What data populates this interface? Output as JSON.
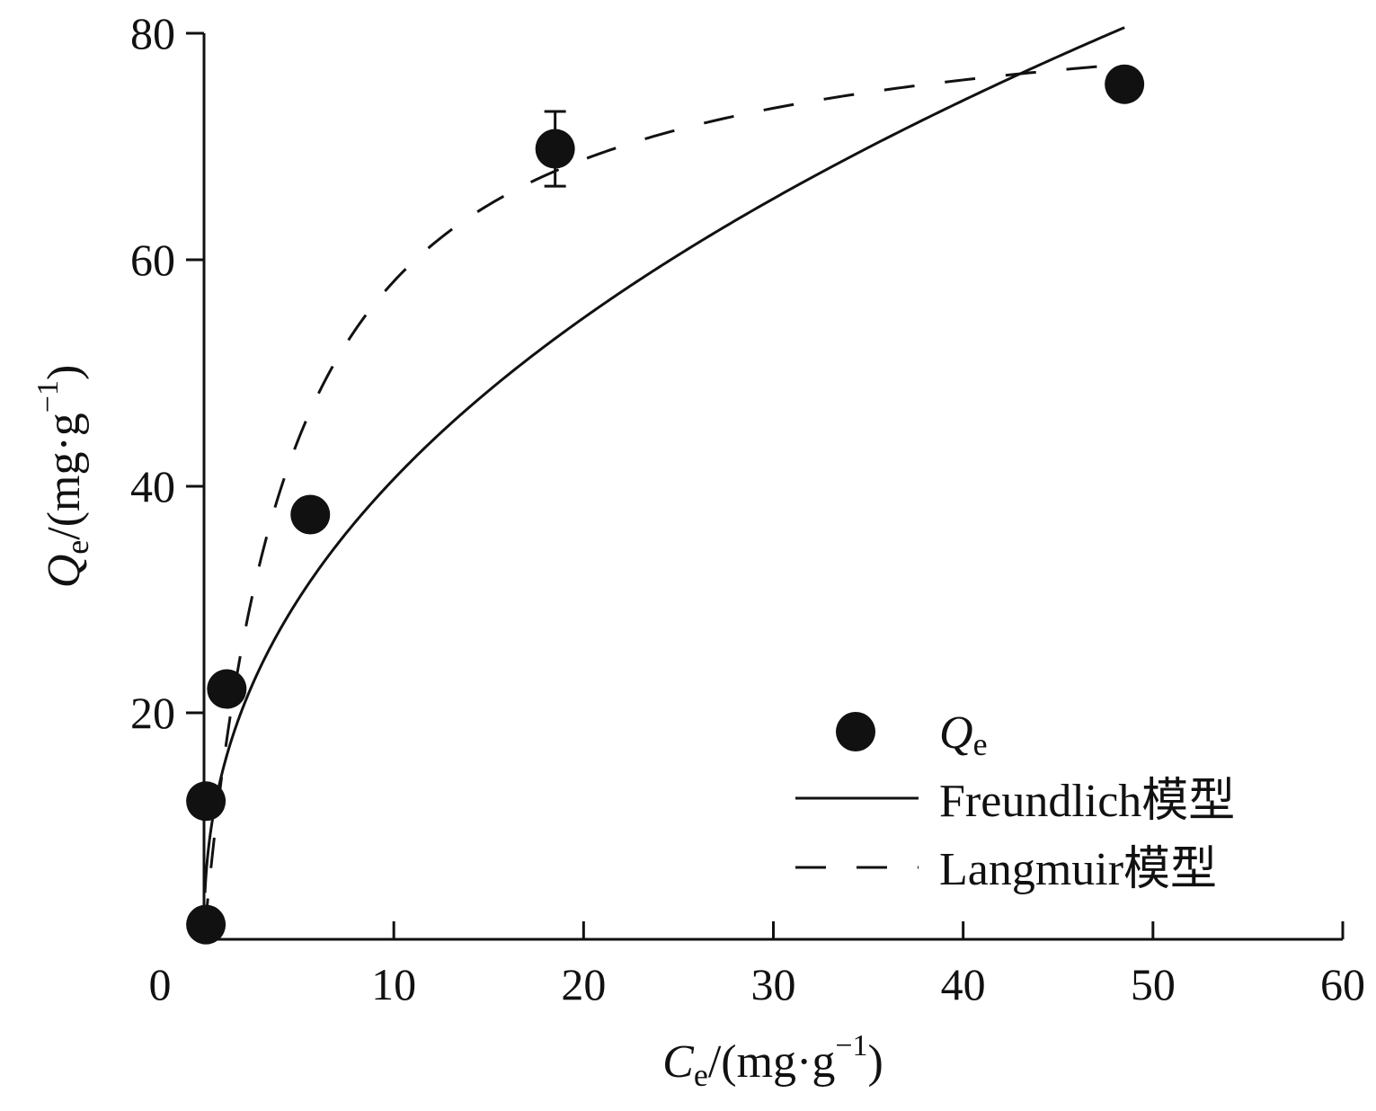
{
  "chart_data": {
    "type": "scatter",
    "xlim": [
      0,
      60
    ],
    "ylim": [
      0,
      80
    ],
    "x_ticks": [
      0,
      10,
      20,
      30,
      40,
      50,
      60
    ],
    "y_ticks": [
      20,
      40,
      60,
      80
    ],
    "x_tick_labels": [
      "0",
      "10",
      "20",
      "30",
      "40",
      "50",
      "60"
    ],
    "y_tick_labels": [
      "20",
      "40",
      "60",
      "80"
    ],
    "xlabel": {
      "symbol": "C",
      "sub": "e",
      "unit": "/(mg·g",
      "sup": "−1",
      "close": ")"
    },
    "ylabel": {
      "symbol": "Q",
      "sub": "e",
      "unit": "/(mg·g",
      "sup": "−1",
      "close": ")"
    },
    "legend_position": "bottom-right",
    "grid": false,
    "series": [
      {
        "name": "Q",
        "name_sub": "e",
        "kind": "points",
        "x": [
          0.1,
          0.1,
          1.2,
          5.6,
          18.5,
          48.5
        ],
        "y": [
          1.3,
          12.2,
          22.1,
          37.5,
          69.8,
          75.5
        ],
        "error": [
          0,
          0,
          0,
          0,
          3.3,
          0
        ],
        "color": "#111111"
      },
      {
        "name": "Freundlich模型",
        "kind": "solid-line",
        "curve": {
          "model": "freundlich",
          "K": 15.0,
          "n": 2.31,
          "x_start": 0.05,
          "x_end": 48.5
        },
        "color": "#111111"
      },
      {
        "name": "Langmuir模型",
        "kind": "dashed-line",
        "curve": {
          "model": "langmuir",
          "Qm": 84.5,
          "KL": 0.22,
          "x_start": 0.05,
          "x_end": 48.5
        },
        "color": "#111111"
      }
    ]
  }
}
